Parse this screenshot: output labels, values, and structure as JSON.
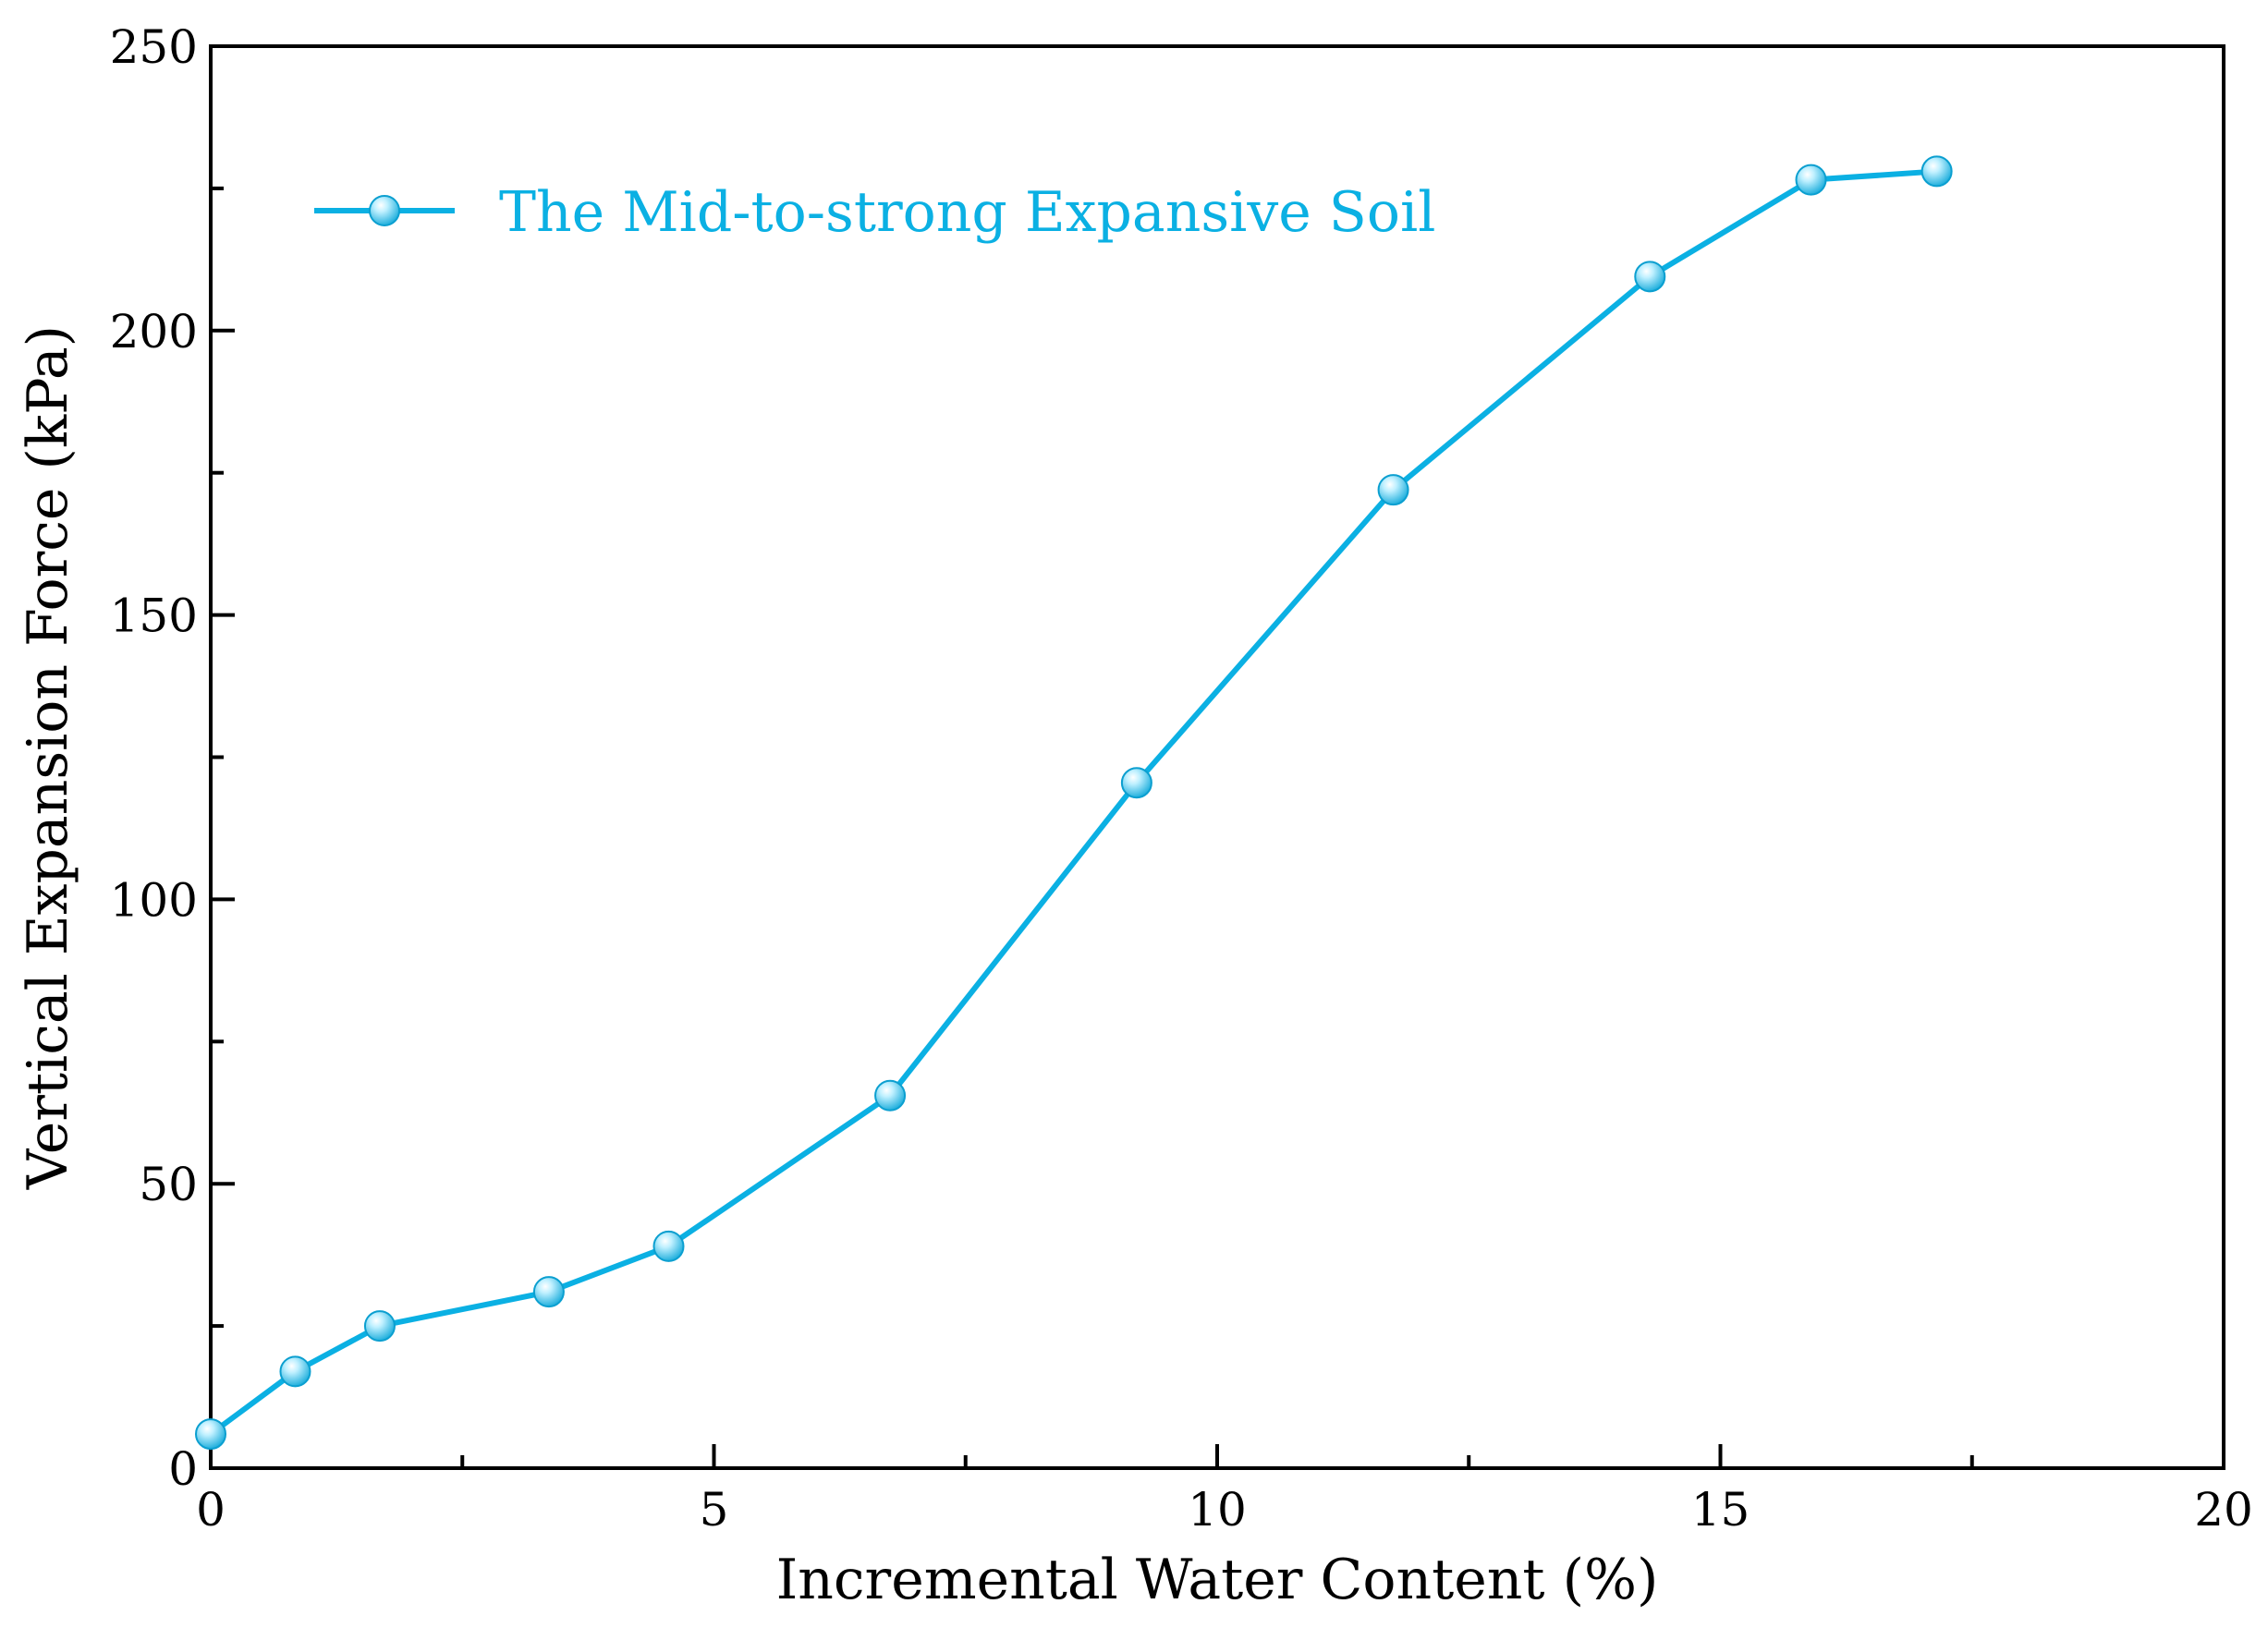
{
  "chart_data": {
    "type": "line",
    "title": "",
    "xlabel": "Incremental Water Content (%)",
    "ylabel": "Vertical Expansion Force (kPa)",
    "xlim": [
      0,
      20
    ],
    "ylim": [
      0,
      250
    ],
    "xticks": [
      0,
      5,
      10,
      15,
      20
    ],
    "yticks": [
      0,
      50,
      100,
      150,
      200,
      250
    ],
    "x_minor_step": 2.5,
    "y_minor_step": 25,
    "grid": false,
    "legend_position": "top-left",
    "colors": {
      "series": "#0bb0e3",
      "marker_highlight": "#bff0ff",
      "axis": "#000000"
    },
    "series": [
      {
        "name": "The Mid-to-strong Expansive Soil",
        "x": [
          0,
          0.84,
          1.68,
          3.36,
          4.55,
          6.75,
          9.2,
          11.75,
          14.3,
          15.9,
          17.15
        ],
        "y": [
          6,
          17,
          25,
          31,
          39,
          65.5,
          120.5,
          172,
          209.5,
          226.5,
          228
        ]
      }
    ]
  }
}
